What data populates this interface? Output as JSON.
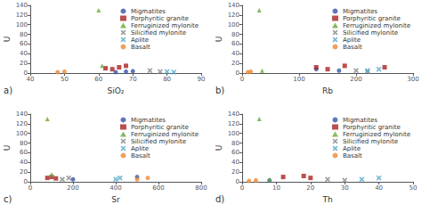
{
  "chart_data": [
    {
      "type": "scatter",
      "xlabel": "SiO₂",
      "ylabel": "U",
      "annotation": "a)",
      "xlim": [
        40,
        90
      ],
      "xticks": [
        40,
        50,
        60,
        70,
        80,
        90
      ],
      "ylim": [
        0,
        140
      ],
      "yticks": [
        0,
        20,
        40,
        60,
        80,
        100,
        120,
        140
      ],
      "grid": false,
      "legend": "upper right",
      "series": [
        {
          "name": "Migmatites",
          "color": "#3355aa",
          "marker": "circle",
          "x": [
            65,
            68,
            70
          ],
          "values": [
            2,
            3,
            4
          ]
        },
        {
          "name": "Porphyritic granite",
          "color": "#aa2222",
          "marker": "square",
          "x": [
            62,
            64,
            66,
            68
          ],
          "values": [
            10,
            8,
            12,
            15
          ]
        },
        {
          "name": "Ferruginized mylonite",
          "color": "#66aa33",
          "marker": "triangle",
          "x": [
            60,
            61
          ],
          "values": [
            130,
            15
          ]
        },
        {
          "name": "Silicified mylonite",
          "color": "#888888",
          "marker": "x",
          "x": [
            75,
            78
          ],
          "values": [
            5,
            3
          ]
        },
        {
          "name": "Aplite",
          "color": "#55aacc",
          "marker": "x",
          "x": [
            80,
            82
          ],
          "values": [
            3,
            2
          ]
        },
        {
          "name": "Basalt",
          "color": "#ee8833",
          "marker": "circle",
          "x": [
            48,
            50
          ],
          "values": [
            2,
            3
          ]
        }
      ]
    },
    {
      "type": "scatter",
      "xlabel": "Rb",
      "ylabel": "U",
      "annotation": "b)",
      "xlim": [
        0,
        300
      ],
      "xticks": [
        0,
        100,
        200,
        300
      ],
      "ylim": [
        0,
        140
      ],
      "yticks": [
        0,
        20,
        40,
        60,
        80,
        100,
        120,
        140
      ],
      "grid": false,
      "legend": "upper right",
      "series": [
        {
          "name": "Migmatites",
          "color": "#3355aa",
          "marker": "circle",
          "x": [
            130,
            170
          ],
          "values": [
            8,
            5
          ]
        },
        {
          "name": "Porphyritic granite",
          "color": "#aa2222",
          "marker": "square",
          "x": [
            130,
            150,
            180,
            250
          ],
          "values": [
            12,
            8,
            15,
            12
          ]
        },
        {
          "name": "Ferruginized mylonite",
          "color": "#66aa33",
          "marker": "triangle",
          "x": [
            30,
            35
          ],
          "values": [
            130,
            5
          ]
        },
        {
          "name": "Silicified mylonite",
          "color": "#888888",
          "marker": "x",
          "x": [
            200,
            220
          ],
          "values": [
            5,
            3
          ]
        },
        {
          "name": "Aplite",
          "color": "#55aacc",
          "marker": "x",
          "x": [
            220,
            240
          ],
          "values": [
            5,
            8
          ]
        },
        {
          "name": "Basalt",
          "color": "#ee8833",
          "marker": "circle",
          "x": [
            10,
            15
          ],
          "values": [
            2,
            3
          ]
        }
      ]
    },
    {
      "type": "scatter",
      "xlabel": "Sr",
      "ylabel": "U",
      "annotation": "c)",
      "xlim": [
        0,
        800
      ],
      "xticks": [
        0,
        200,
        400,
        600,
        800
      ],
      "ylim": [
        0,
        140
      ],
      "yticks": [
        0,
        20,
        40,
        60,
        80,
        100,
        120,
        140
      ],
      "grid": false,
      "legend": "upper right",
      "series": [
        {
          "name": "Migmatites",
          "color": "#3355aa",
          "marker": "circle",
          "x": [
            200,
            500
          ],
          "values": [
            5,
            10
          ]
        },
        {
          "name": "Porphyritic granite",
          "color": "#aa2222",
          "marker": "square",
          "x": [
            80,
            100,
            120
          ],
          "values": [
            8,
            10,
            7
          ]
        },
        {
          "name": "Ferruginized mylonite",
          "color": "#66aa33",
          "marker": "triangle",
          "x": [
            80,
            100
          ],
          "values": [
            130,
            15
          ]
        },
        {
          "name": "Silicified mylonite",
          "color": "#888888",
          "marker": "x",
          "x": [
            150,
            180
          ],
          "values": [
            5,
            8
          ]
        },
        {
          "name": "Aplite",
          "color": "#55aacc",
          "marker": "x",
          "x": [
            400,
            420
          ],
          "values": [
            5,
            8
          ]
        },
        {
          "name": "Basalt",
          "color": "#ee8833",
          "marker": "circle",
          "x": [
            500,
            550
          ],
          "values": [
            5,
            8
          ]
        }
      ]
    },
    {
      "type": "scatter",
      "xlabel": "Th",
      "ylabel": "U",
      "annotation": "d)",
      "xlim": [
        0,
        50
      ],
      "xticks": [
        0,
        10,
        20,
        30,
        40,
        50
      ],
      "ylim": [
        0,
        140
      ],
      "yticks": [
        0,
        20,
        40,
        60,
        80,
        100,
        120,
        140
      ],
      "grid": false,
      "legend": "upper right",
      "series": [
        {
          "name": "Migmatites",
          "color": "#3355aa",
          "marker": "circle",
          "x": [
            8
          ],
          "values": [
            3
          ]
        },
        {
          "name": "Porphyritic granite",
          "color": "#aa2222",
          "marker": "square",
          "x": [
            12,
            18,
            20
          ],
          "values": [
            10,
            12,
            8
          ]
        },
        {
          "name": "Ferruginized mylonite",
          "color": "#66aa33",
          "marker": "triangle",
          "x": [
            5,
            8
          ],
          "values": [
            130,
            5
          ]
        },
        {
          "name": "Silicified mylonite",
          "color": "#888888",
          "marker": "x",
          "x": [
            25,
            30
          ],
          "values": [
            5,
            3
          ]
        },
        {
          "name": "Aplite",
          "color": "#55aacc",
          "marker": "x",
          "x": [
            35,
            40
          ],
          "values": [
            5,
            8
          ]
        },
        {
          "name": "Basalt",
          "color": "#ee8833",
          "marker": "circle",
          "x": [
            2,
            4
          ],
          "values": [
            2,
            3
          ]
        }
      ]
    }
  ]
}
